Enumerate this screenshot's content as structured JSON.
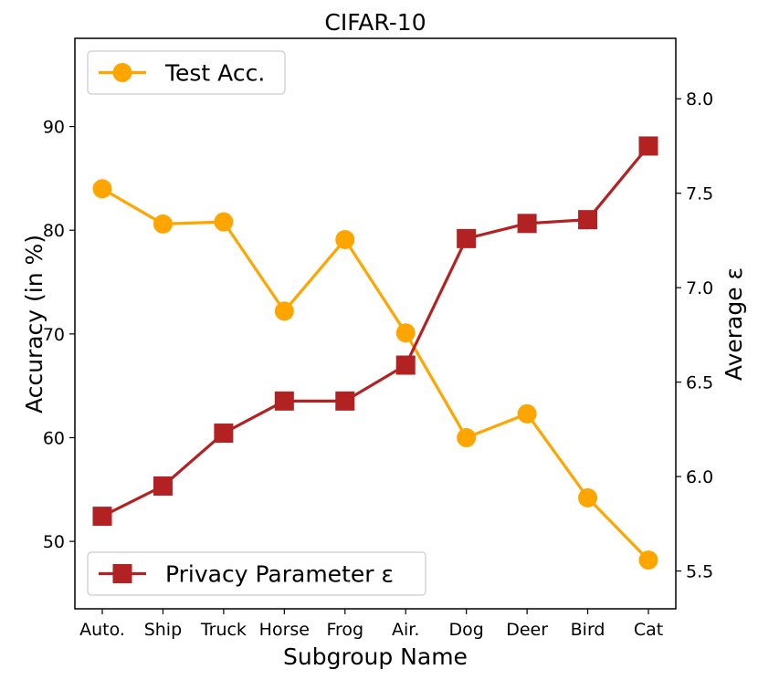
{
  "chart_data": {
    "type": "line",
    "title": "CIFAR-10",
    "xlabel": "Subgroup Name",
    "ylabel_left": "Accuracy (in %)",
    "ylabel_right": "Average ε",
    "categories": [
      "Auto.",
      "Ship",
      "Truck",
      "Horse",
      "Frog",
      "Air.",
      "Dog",
      "Deer",
      "Bird",
      "Cat"
    ],
    "left_axis": {
      "ylim": [
        43.5,
        98.5
      ],
      "ticks": [
        50,
        60,
        70,
        80,
        90
      ]
    },
    "right_axis": {
      "ylim": [
        5.3,
        8.32
      ],
      "ticks": [
        5.5,
        6.0,
        6.5,
        7.0,
        7.5,
        8.0
      ],
      "tick_labels": [
        "5.5",
        "6.0",
        "6.5",
        "7.0",
        "7.5",
        "8.0"
      ]
    },
    "series": [
      {
        "name": "Test Acc.",
        "axis": "left",
        "color": "#FFA500",
        "marker": "circle",
        "values": [
          84.0,
          80.6,
          80.8,
          72.2,
          79.1,
          70.1,
          60.0,
          62.3,
          54.2,
          48.2
        ]
      },
      {
        "name": "Privacy Parameter ε",
        "axis": "right",
        "color": "#B22222",
        "marker": "square",
        "values": [
          5.79,
          5.95,
          6.23,
          6.4,
          6.4,
          6.59,
          7.26,
          7.34,
          7.36,
          7.75
        ]
      }
    ],
    "legends": [
      {
        "series": 0,
        "placement": "upper-left"
      },
      {
        "series": 1,
        "placement": "lower-left"
      }
    ],
    "grid": false
  }
}
